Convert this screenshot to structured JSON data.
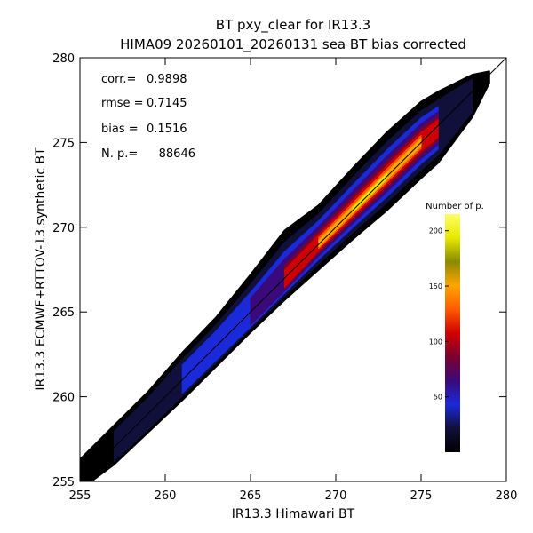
{
  "chart_data": {
    "type": "heatmap",
    "title": "BT pxy_clear for IR13.3",
    "subtitle": "HIMA09 20260101_20260131 sea BT bias corrected",
    "xlabel": "IR13.3 Himawari BT",
    "ylabel": "IR13.3 ECMWF+RTTOV-13 synthetic BT",
    "xlim": [
      255,
      280
    ],
    "ylim": [
      255,
      280
    ],
    "xticks": [
      255,
      260,
      265,
      270,
      275,
      280
    ],
    "yticks": [
      255,
      260,
      265,
      270,
      275,
      280
    ],
    "grid": false,
    "stats": [
      {
        "label": "corr.=",
        "value": "0.9898"
      },
      {
        "label": "rmse =",
        "value": "0.7145"
      },
      {
        "label": "bias =",
        "value": "0.1516"
      },
      {
        "label": "N. p.=",
        "value": "88646"
      }
    ],
    "density_ridge": {
      "x": [
        255,
        257,
        259,
        261,
        263,
        265,
        267,
        269,
        271,
        273,
        275,
        276,
        278,
        279
      ],
      "y": [
        255,
        256.8,
        258.7,
        260.8,
        262.7,
        264.6,
        266.7,
        269.0,
        271.0,
        273.0,
        275.0,
        275.8,
        277.8,
        278.9
      ],
      "upper_edge": [
        256.3,
        258.3,
        260.3,
        262.6,
        264.7,
        267.2,
        269.8,
        271.3,
        273.5,
        275.6,
        277.4,
        278.0,
        279.0,
        279.2
      ],
      "lower_edge": [
        254.5,
        256.0,
        257.9,
        259.8,
        261.8,
        263.8,
        265.7,
        267.5,
        269.3,
        271.0,
        272.9,
        273.8,
        276.5,
        278.5
      ],
      "peak_count": [
        5,
        15,
        25,
        40,
        60,
        90,
        130,
        180,
        200,
        215,
        170,
        120,
        20,
        5
      ]
    },
    "colorbar": {
      "title": "Number of p.",
      "ticks": [
        50,
        100,
        150,
        200
      ],
      "range": [
        0,
        215
      ],
      "colors": [
        "#000000",
        "#10103a",
        "#1a2ad8",
        "#3a0a7a",
        "#7a0030",
        "#d00000",
        "#ff5a00",
        "#ffa500",
        "#8a8a00",
        "#e8e800",
        "#ffff66"
      ]
    },
    "reference_line": "y = x"
  }
}
